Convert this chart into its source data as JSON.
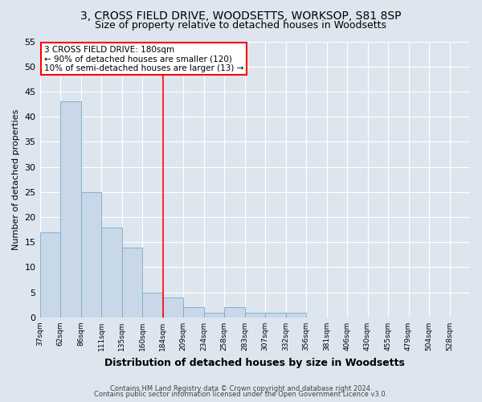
{
  "title_line1": "3, CROSS FIELD DRIVE, WOODSETTS, WORKSOP, S81 8SP",
  "title_line2": "Size of property relative to detached houses in Woodsetts",
  "xlabel": "Distribution of detached houses by size in Woodsetts",
  "ylabel": "Number of detached properties",
  "bar_values": [
    17,
    43,
    25,
    18,
    14,
    5,
    4,
    2,
    1,
    2,
    1,
    1,
    1,
    0,
    0,
    0,
    0,
    0,
    0,
    0
  ],
  "bar_labels": [
    "37sqm",
    "62sqm",
    "86sqm",
    "111sqm",
    "135sqm",
    "160sqm",
    "184sqm",
    "209sqm",
    "234sqm",
    "258sqm",
    "283sqm",
    "307sqm",
    "332sqm",
    "356sqm",
    "381sqm",
    "406sqm",
    "430sqm",
    "455sqm",
    "479sqm",
    "504sqm",
    "528sqm"
  ],
  "bar_color": "#c8d8e8",
  "bar_edge_color": "#7aaac8",
  "annotation_text": "3 CROSS FIELD DRIVE: 180sqm\n← 90% of detached houses are smaller (120)\n10% of semi-detached houses are larger (13) →",
  "annotation_box_color": "white",
  "annotation_box_edge_color": "red",
  "vline_color": "red",
  "vline_x_index": 6,
  "ylim": [
    0,
    55
  ],
  "yticks": [
    0,
    5,
    10,
    15,
    20,
    25,
    30,
    35,
    40,
    45,
    50,
    55
  ],
  "footer_line1": "Contains HM Land Registry data © Crown copyright and database right 2024.",
  "footer_line2": "Contains public sector information licensed under the Open Government Licence v3.0.",
  "bg_color": "#dde6ef",
  "plot_bg_color": "#dde6ef",
  "title_fontsize": 10,
  "subtitle_fontsize": 9,
  "xlabel_fontsize": 9,
  "ylabel_fontsize": 8
}
